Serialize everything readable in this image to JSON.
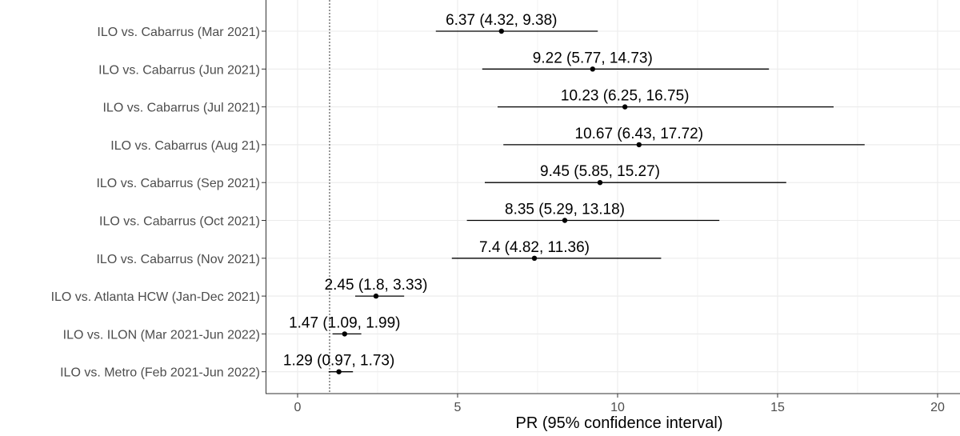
{
  "chart_data": {
    "type": "forest",
    "xlabel": "PR (95% confidence interval)",
    "ylabel": "",
    "xlim": [
      -1,
      21
    ],
    "xticks": [
      0,
      5,
      10,
      15,
      20
    ],
    "reference_line": 1,
    "grid": true,
    "colors": {
      "grid": "#ebebeb",
      "mark": "#000000",
      "panel_border": "#333333",
      "tick_text": "#4d4d4d"
    },
    "rows": [
      {
        "label": "ILO vs. Cabarrus (Mar 2021)",
        "estimate": 6.37,
        "lower": 4.32,
        "upper": 9.38,
        "text": "6.37 (4.32, 9.38)"
      },
      {
        "label": "ILO vs. Cabarrus (Jun 2021)",
        "estimate": 9.22,
        "lower": 5.77,
        "upper": 14.73,
        "text": "9.22 (5.77, 14.73)"
      },
      {
        "label": "ILO vs. Cabarrus (Jul 2021)",
        "estimate": 10.23,
        "lower": 6.25,
        "upper": 16.75,
        "text": "10.23 (6.25, 16.75)"
      },
      {
        "label": "ILO vs. Cabarrus (Aug 21)",
        "estimate": 10.67,
        "lower": 6.43,
        "upper": 17.72,
        "text": "10.67 (6.43, 17.72)"
      },
      {
        "label": "ILO vs. Cabarrus (Sep 2021)",
        "estimate": 9.45,
        "lower": 5.85,
        "upper": 15.27,
        "text": "9.45 (5.85, 15.27)"
      },
      {
        "label": "ILO vs. Cabarrus (Oct 2021)",
        "estimate": 8.35,
        "lower": 5.29,
        "upper": 13.18,
        "text": "8.35 (5.29, 13.18)"
      },
      {
        "label": "ILO vs. Cabarrus (Nov 2021)",
        "estimate": 7.4,
        "lower": 4.82,
        "upper": 11.36,
        "text": "7.4 (4.82, 11.36)"
      },
      {
        "label": "ILO vs. Atlanta HCW (Jan-Dec 2021)",
        "estimate": 2.45,
        "lower": 1.8,
        "upper": 3.33,
        "text": "2.45 (1.8, 3.33)"
      },
      {
        "label": "ILO vs. ILON (Mar 2021-Jun 2022)",
        "estimate": 1.47,
        "lower": 1.09,
        "upper": 1.99,
        "text": "1.47 (1.09, 1.99)"
      },
      {
        "label": "ILO vs. Metro (Feb 2021-Jun 2022)",
        "estimate": 1.29,
        "lower": 0.97,
        "upper": 1.73,
        "text": "1.29 (0.97, 1.73)"
      }
    ]
  }
}
